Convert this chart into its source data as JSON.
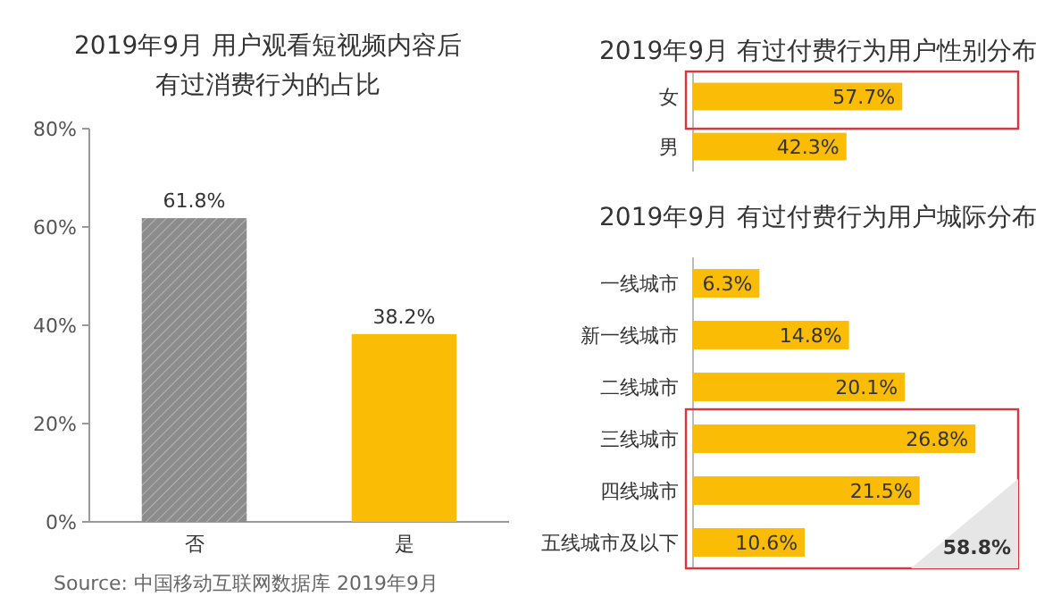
{
  "chart_data": [
    {
      "type": "bar",
      "title": "2019年9月 用户观看短视频内容后有过消费行为的占比",
      "categories": [
        "否",
        "是"
      ],
      "values": [
        61.8,
        38.2
      ],
      "colors": [
        "#8c8c8c",
        "#fbbc05"
      ],
      "value_labels": [
        "61.8%",
        "38.2%"
      ],
      "ylim": [
        0,
        80
      ],
      "yticks": [
        {
          "value": 0,
          "label": "0%"
        },
        {
          "value": 20,
          "label": "20%"
        },
        {
          "value": 40,
          "label": "40%"
        },
        {
          "value": 60,
          "label": "60%"
        },
        {
          "value": 80,
          "label": "80%"
        }
      ],
      "grid": false,
      "annotations": [
        "Source: 中国移动互联网数据库 2019年9月"
      ]
    },
    {
      "type": "bar",
      "orientation": "horizontal",
      "title": "2019年9月 有过付费行为用户性别分布",
      "categories": [
        "女",
        "男"
      ],
      "values": [
        57.7,
        42.3
      ],
      "color": "#fbbc05",
      "value_labels": [
        "57.7%",
        "42.3%"
      ]
    },
    {
      "type": "bar",
      "orientation": "horizontal",
      "title": "2019年9月 有过付费行为用户城际分布",
      "categories": [
        "一线城市",
        "新一线城市",
        "二线城市",
        "三线城市",
        "四线城市",
        "五线城市及以下"
      ],
      "values": [
        6.3,
        14.8,
        20.1,
        26.8,
        21.5,
        10.6
      ],
      "color": "#fbbc05",
      "value_labels": [
        "6.3%",
        "14.8%",
        "20.1%",
        "26.8%",
        "21.5%",
        "10.6%"
      ],
      "annotations": [
        "58.8%"
      ]
    }
  ]
}
